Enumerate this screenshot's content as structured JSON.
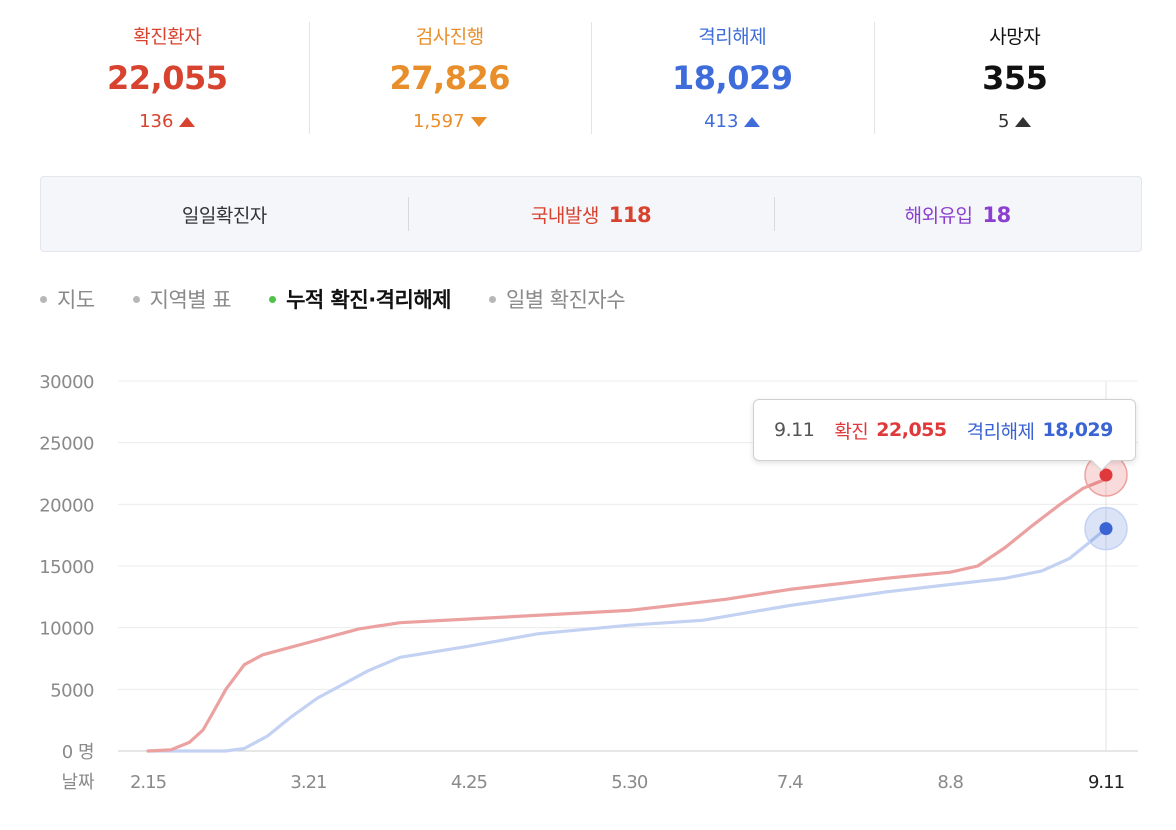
{
  "stats": [
    {
      "label": "확진환자",
      "value": "22,055",
      "delta": "136",
      "direction": "up",
      "color": "#d8432f"
    },
    {
      "label": "검사진행",
      "value": "27,826",
      "delta": "1,597",
      "direction": "down",
      "color": "#e88e2b"
    },
    {
      "label": "격리해제",
      "value": "18,029",
      "delta": "413",
      "direction": "up",
      "color": "#3e6ddb"
    },
    {
      "label": "사망자",
      "value": "355",
      "delta": "5",
      "direction": "up",
      "color": "#111111"
    }
  ],
  "daily": {
    "title": "일일확진자",
    "domestic_label": "국내발생",
    "domestic_value": "118",
    "overseas_label": "해외유입",
    "overseas_value": "18"
  },
  "tabs": [
    "지도",
    "지역별 표",
    "누적 확진·격리해제",
    "일별 확진자수"
  ],
  "active_tab": 2,
  "tooltip": {
    "date": "9.11",
    "confirmed_label": "확진",
    "confirmed_value": "22,055",
    "released_label": "격리해제",
    "released_value": "18,029"
  },
  "chart_data": {
    "type": "line",
    "xlabel": "날짜",
    "ylabel": "",
    "y_unit": "명",
    "ylim": [
      0,
      30000
    ],
    "yticks": [
      0,
      5000,
      10000,
      15000,
      20000,
      25000,
      30000
    ],
    "xticks": [
      "2.15",
      "3.21",
      "4.25",
      "5.30",
      "7.4",
      "8.8",
      "9.11"
    ],
    "grid": true,
    "series": [
      {
        "name": "확진",
        "color": "#eca1a1",
        "marker_color": "#e0393b",
        "points": [
          {
            "x": "2.15",
            "y": 0
          },
          {
            "x": "2.20",
            "y": 100
          },
          {
            "x": "2.24",
            "y": 700
          },
          {
            "x": "2.27",
            "y": 1700
          },
          {
            "x": "2.29",
            "y": 3000
          },
          {
            "x": "3.3",
            "y": 5000
          },
          {
            "x": "3.7",
            "y": 7000
          },
          {
            "x": "3.11",
            "y": 7800
          },
          {
            "x": "3.21",
            "y": 8800
          },
          {
            "x": "4.1",
            "y": 9900
          },
          {
            "x": "4.10",
            "y": 10400
          },
          {
            "x": "4.25",
            "y": 10700
          },
          {
            "x": "5.30",
            "y": 11400
          },
          {
            "x": "6.20",
            "y": 12300
          },
          {
            "x": "7.4",
            "y": 13100
          },
          {
            "x": "7.25",
            "y": 14000
          },
          {
            "x": "8.8",
            "y": 14500
          },
          {
            "x": "8.14",
            "y": 15000
          },
          {
            "x": "8.20",
            "y": 16500
          },
          {
            "x": "8.26",
            "y": 18300
          },
          {
            "x": "9.1",
            "y": 20000
          },
          {
            "x": "9.6",
            "y": 21300
          },
          {
            "x": "9.11",
            "y": 22055
          }
        ]
      },
      {
        "name": "격리해제",
        "color": "#c3d2f3",
        "marker_color": "#3a63d3",
        "points": [
          {
            "x": "2.15",
            "y": 0
          },
          {
            "x": "3.3",
            "y": 0
          },
          {
            "x": "3.7",
            "y": 200
          },
          {
            "x": "3.12",
            "y": 1200
          },
          {
            "x": "3.17",
            "y": 2700
          },
          {
            "x": "3.23",
            "y": 4300
          },
          {
            "x": "3.29",
            "y": 5500
          },
          {
            "x": "4.3",
            "y": 6500
          },
          {
            "x": "4.10",
            "y": 7600
          },
          {
            "x": "4.25",
            "y": 8500
          },
          {
            "x": "5.10",
            "y": 9500
          },
          {
            "x": "5.30",
            "y": 10200
          },
          {
            "x": "6.15",
            "y": 10600
          },
          {
            "x": "7.4",
            "y": 11800
          },
          {
            "x": "7.25",
            "y": 12900
          },
          {
            "x": "8.8",
            "y": 13500
          },
          {
            "x": "8.20",
            "y": 14000
          },
          {
            "x": "8.28",
            "y": 14600
          },
          {
            "x": "9.3",
            "y": 15600
          },
          {
            "x": "9.7",
            "y": 16800
          },
          {
            "x": "9.11",
            "y": 18029
          }
        ]
      }
    ]
  }
}
